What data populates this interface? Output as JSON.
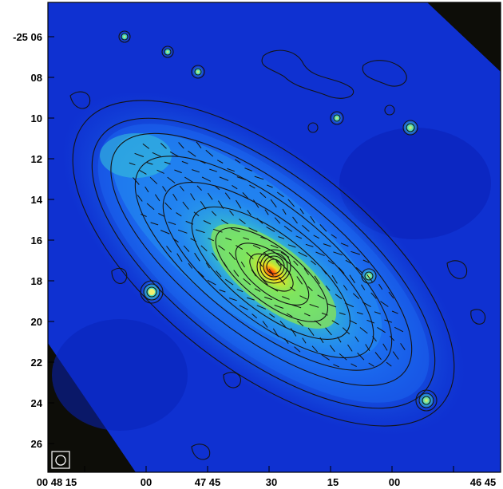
{
  "image": {
    "kind": "radio continuum map with contours and polarization vectors",
    "colormap": [
      "#0b1fd0",
      "#1c5ef0",
      "#2aa0f2",
      "#2fd6c8",
      "#8ef04a",
      "#e8f020",
      "#ff3000"
    ],
    "outside_coverage_color": "#0d0d08"
  },
  "axes": {
    "y_ticks": [
      "-25 06",
      "08",
      "10",
      "12",
      "14",
      "16",
      "18",
      "20",
      "22",
      "24",
      "26"
    ],
    "x_ticks": [
      "00 48 15",
      "00",
      "47 45",
      "30",
      "15",
      "00",
      "46 45"
    ]
  },
  "beam": {
    "label": "beam ellipse"
  }
}
